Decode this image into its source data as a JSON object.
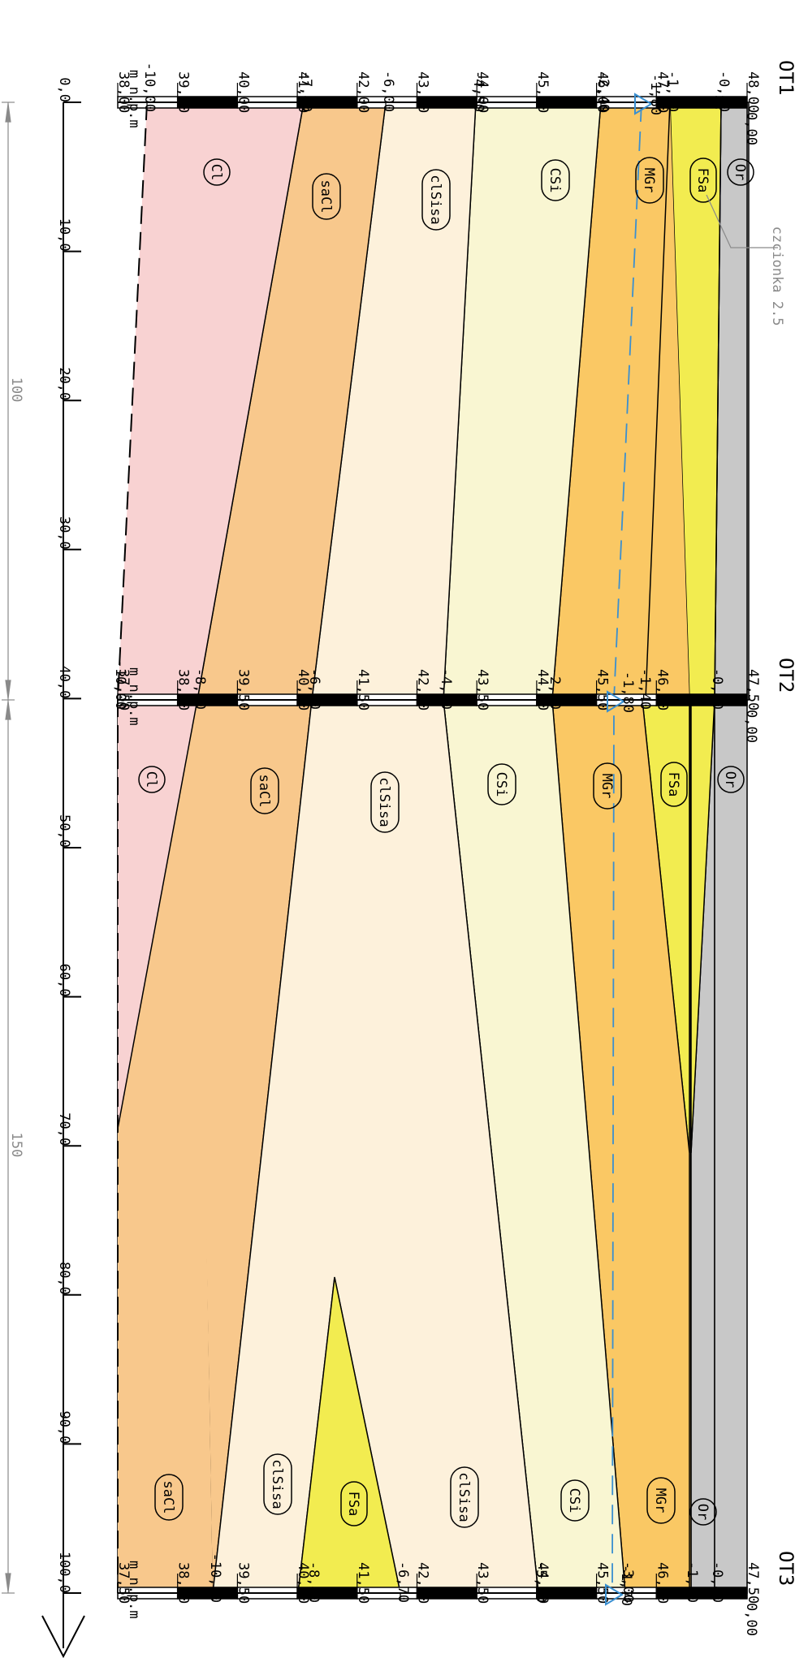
{
  "boreholes": [
    {
      "name": "OT1",
      "top": "0,00"
    },
    {
      "name": "OT2",
      "top": "0,00"
    },
    {
      "name": "OT3",
      "top": "0,00"
    }
  ],
  "elevation_unit": "m n.p.m",
  "elevations_ot1": [
    "38,00",
    "39,00",
    "40,00",
    "41,00",
    "42,00",
    "43,00",
    "44,00",
    "45,00",
    "46,00",
    "47,00",
    "48,00"
  ],
  "elevations_ot2": [
    "37,50",
    "38,50",
    "39,50",
    "40,50",
    "41,50",
    "42,50",
    "43,50",
    "44,50",
    "45,50",
    "46,50",
    "47,50"
  ],
  "elevations_ot3": [
    "37,50",
    "38,50",
    "39,50",
    "40,50",
    "41,50",
    "42,50",
    "43,50",
    "44,50",
    "45,50",
    "46,50",
    "47,50"
  ],
  "depths_ot1": [
    "-0,40",
    "-1,20",
    "-2,40",
    "-4,50",
    "-6,00",
    "-7,40",
    "-10,00"
  ],
  "depths_ot2": [
    "-0,50",
    "-1,40",
    "-2,80",
    "-4,60",
    "-6,80",
    "-8,70",
    "-10,00"
  ],
  "depths_ot3": [
    "-0,40",
    "-1,50",
    "-3,00",
    "-5,30",
    "-6,70",
    "-8,40",
    "-10,00"
  ],
  "water_levels": {
    "ot1": "-1,80",
    "ot2": "-1,80",
    "ot3": "-1,70"
  },
  "distance_ticks": [
    "0,0",
    "10,0",
    "20,0",
    "30,0",
    "40,0",
    "50,0",
    "60,0",
    "70,0",
    "80,0",
    "90,0",
    "100,0"
  ],
  "spacing": {
    "a": "100",
    "b": "150"
  },
  "soils": {
    "or": "Or",
    "fsa": "FSa",
    "mgr": "MGr",
    "csi": "CSi",
    "clsisa": "clSisa",
    "sacl": "saCl",
    "cl": "Cl"
  },
  "note": "czcionka 2.5",
  "colors": {
    "or": "#c8c8c8",
    "fsa": "#f2ec50",
    "mgr": "#fac864",
    "csi": "#f9f6d2",
    "clsisa": "#fdf1db",
    "sacl": "#f8c88c",
    "cl": "#f8d2d2",
    "water": "#3a8fd0"
  }
}
